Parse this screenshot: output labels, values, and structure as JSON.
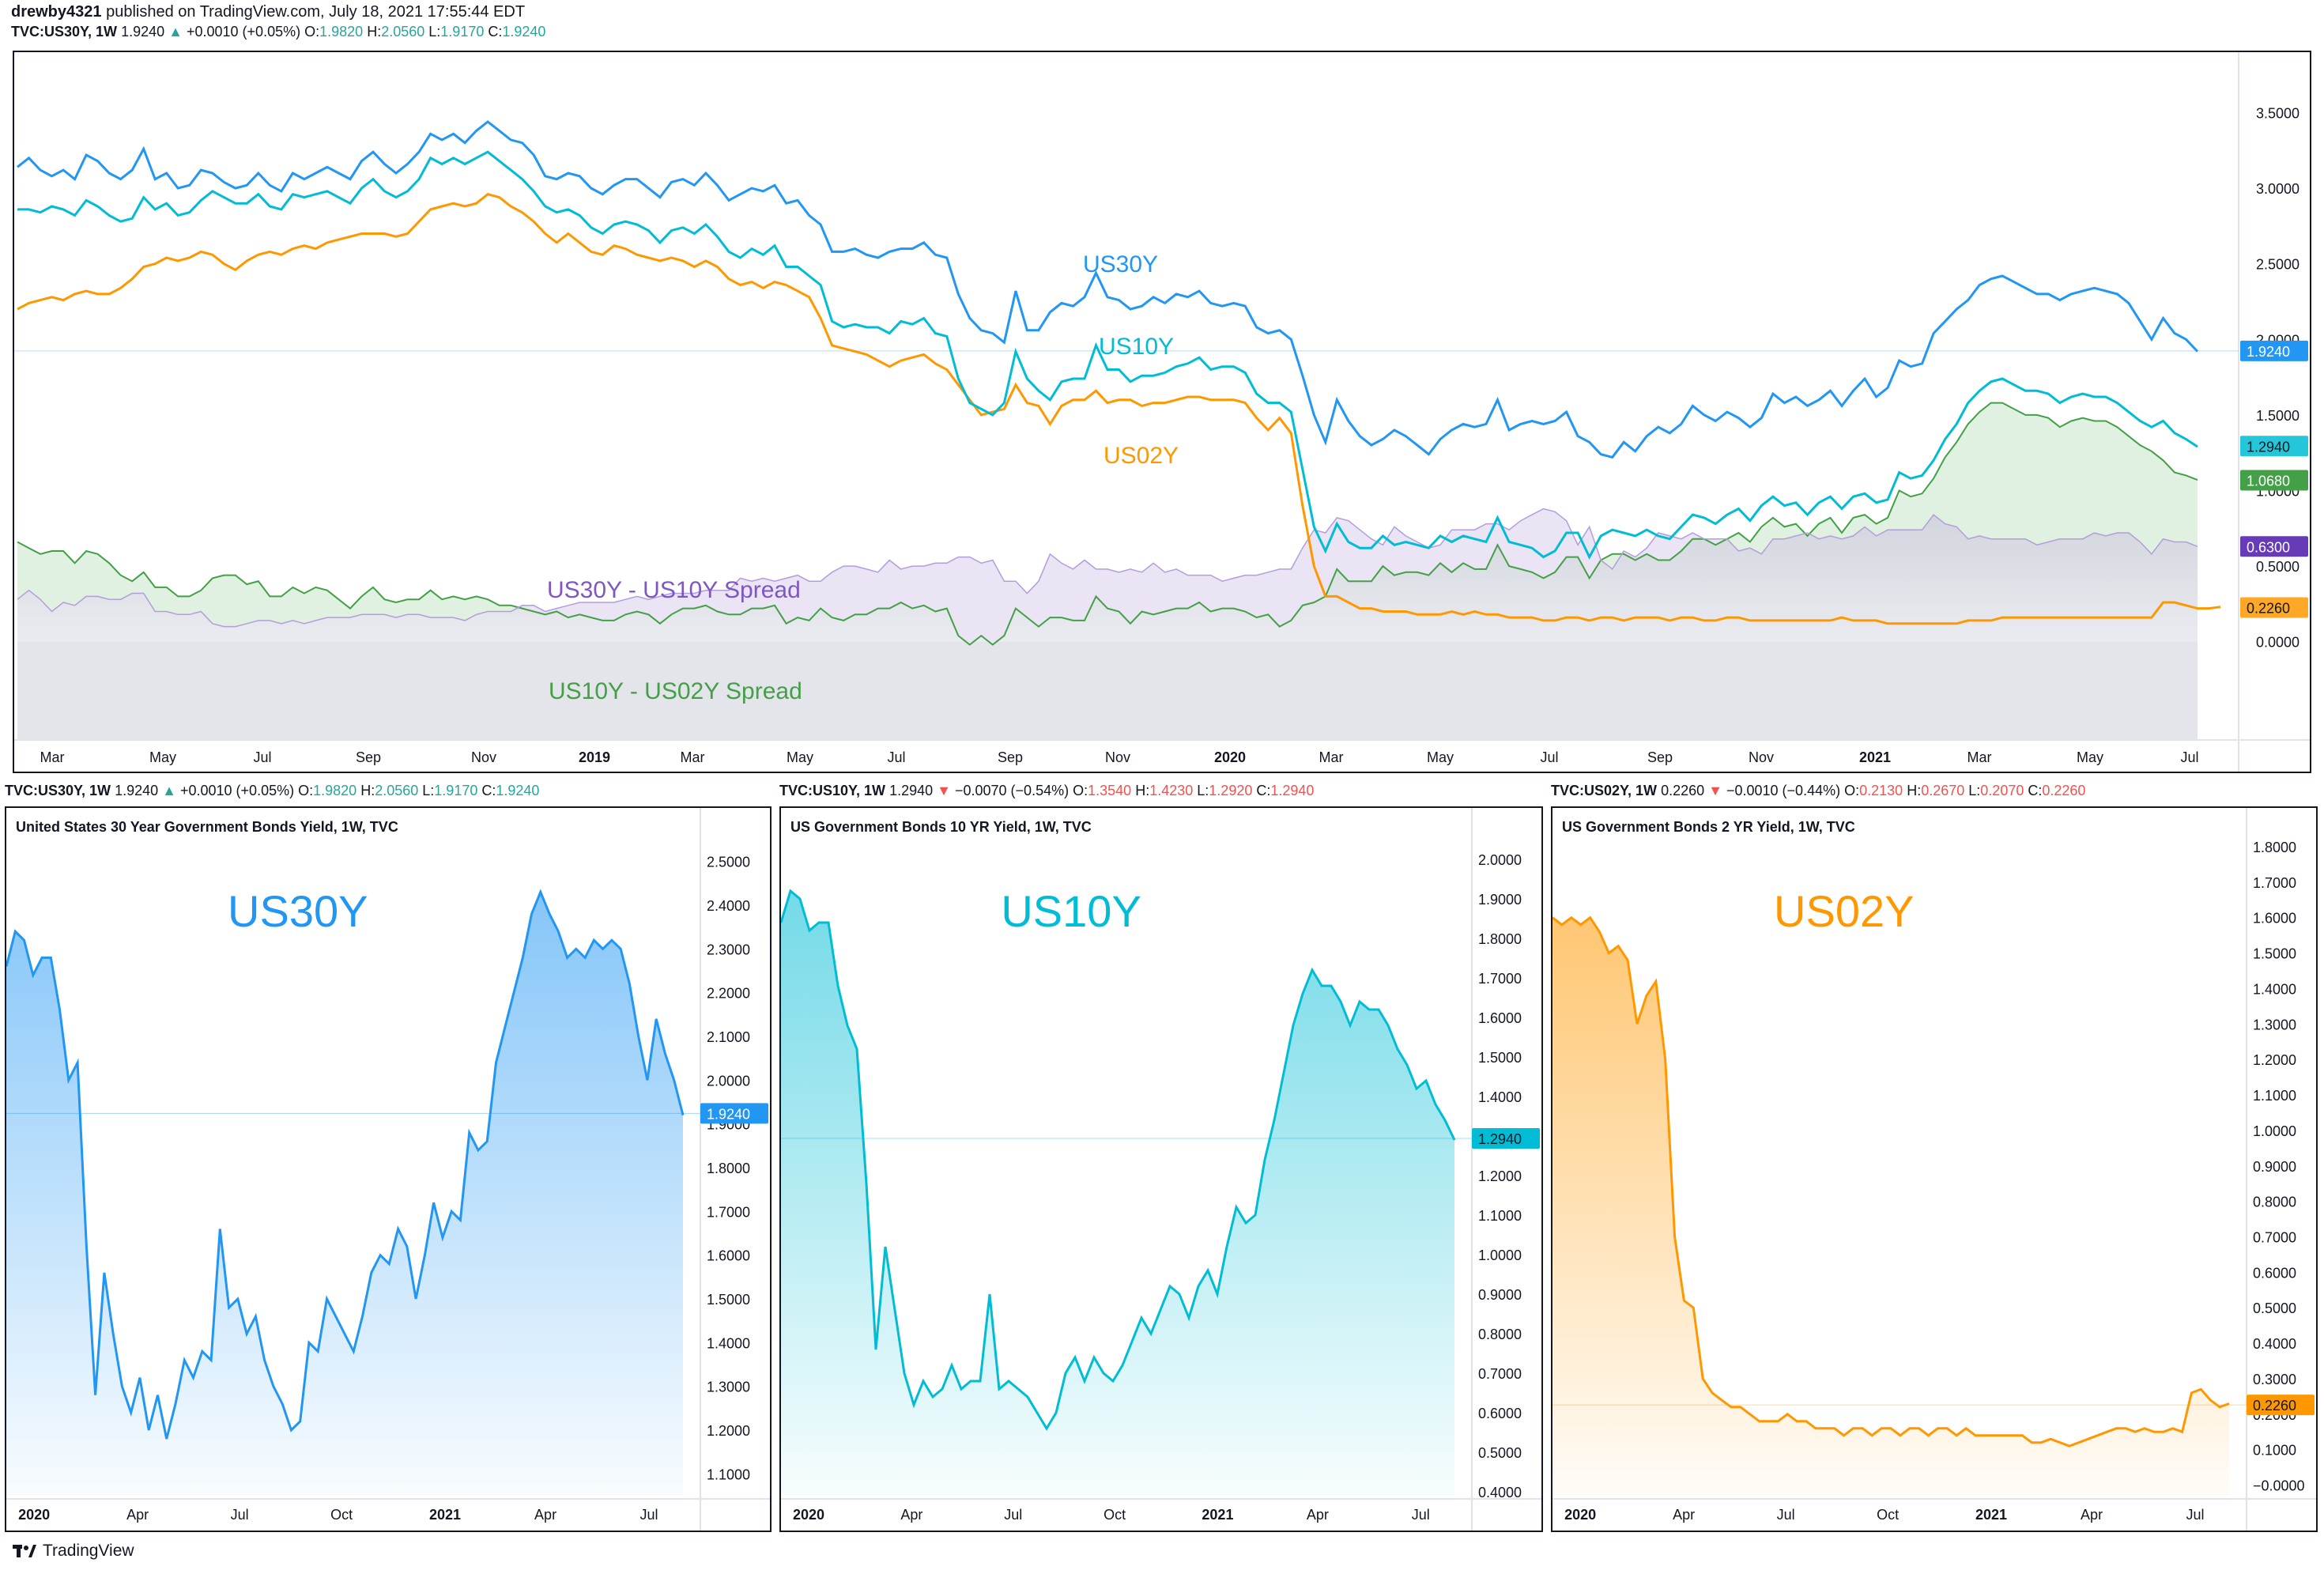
{
  "header": {
    "user": "drewby4321",
    "text": "published on TradingView.com, July 18, 2021 17:55:44 EDT"
  },
  "main_legend": {
    "symbol": "TVC:US30Y, 1W",
    "price": "1.9240",
    "arrow": "▲",
    "change": "+0.0010 (+0.05%)",
    "o_label": "O:",
    "o": "1.9820",
    "h_label": "H:",
    "h": "2.0560",
    "l_label": "L:",
    "l": "1.9170",
    "c_label": "C:",
    "c": "1.9240"
  },
  "panels": [
    {
      "legend": {
        "symbol": "TVC:US30Y, 1W",
        "price": "1.9240",
        "arrow": "▲",
        "change": "+0.0010 (+0.05%)",
        "dir": "up",
        "o": "1.9820",
        "h": "2.0560",
        "l": "1.9170",
        "c": "1.9240"
      },
      "title": "United States 30 Year Government Bonds Yield, 1W, TVC",
      "big_label": "US30Y"
    },
    {
      "legend": {
        "symbol": "TVC:US10Y, 1W",
        "price": "1.2940",
        "arrow": "▼",
        "change": "−0.0070 (−0.54%)",
        "dir": "dn",
        "o": "1.3540",
        "h": "1.4230",
        "l": "1.2920",
        "c": "1.2940"
      },
      "title": "US Government Bonds 10 YR Yield, 1W, TVC",
      "big_label": "US10Y"
    },
    {
      "legend": {
        "symbol": "TVC:US02Y, 1W",
        "price": "0.2260",
        "arrow": "▼",
        "change": "−0.0010 (−0.44%)",
        "dir": "dn",
        "o": "0.2130",
        "h": "0.2670",
        "l": "0.2070",
        "c": "0.2260"
      },
      "title": "US Government Bonds 2 YR Yield, 1W, TVC",
      "big_label": "US02Y"
    }
  ],
  "brand": {
    "name": "TradingView"
  },
  "colors": {
    "us30y": "#2196f3",
    "us10y": "#00bcd4",
    "us02y": "#ff9800",
    "spread30_10": "#7e57c2",
    "spread10_02": "#43a047"
  },
  "chart_data": [
    {
      "type": "line",
      "ylim": [
        -0.65,
        3.9
      ],
      "yticks": [
        "3.5000",
        "3.0000",
        "2.5000",
        "2.0000",
        "1.5000",
        "1.0000",
        "0.5000",
        "0.0000"
      ],
      "x_ticks": [
        "Mar",
        "May",
        "Jul",
        "Sep",
        "Nov",
        "2019",
        "Mar",
        "May",
        "Jul",
        "Sep",
        "Nov",
        "2020",
        "Mar",
        "May",
        "Jul",
        "Sep",
        "Nov",
        "2021",
        "Mar",
        "May",
        "Jul"
      ],
      "annotations": [
        "US30Y",
        "US10Y",
        "US02Y",
        "US30Y - US10Y Spread",
        "US10Y - US02Y Spread"
      ],
      "price_labels": [
        {
          "series": "US30Y",
          "value": "1.9240"
        },
        {
          "series": "US10Y",
          "value": "1.2940"
        },
        {
          "series": "US10Y - US02Y Spread",
          "value": "1.0680"
        },
        {
          "series": "US30Y - US10Y Spread",
          "value": "0.6300"
        },
        {
          "series": "US02Y",
          "value": "0.2260"
        }
      ],
      "series": [
        {
          "name": "US30Y",
          "values": [
            3.14,
            3.2,
            3.12,
            3.08,
            3.12,
            3.06,
            3.22,
            3.18,
            3.1,
            3.06,
            3.12,
            3.26,
            3.06,
            3.1,
            3.0,
            3.02,
            3.12,
            3.1,
            3.04,
            3.0,
            3.02,
            3.1,
            3.02,
            2.98,
            3.1,
            3.06,
            3.1,
            3.14,
            3.1,
            3.06,
            3.18,
            3.24,
            3.16,
            3.1,
            3.16,
            3.24,
            3.36,
            3.32,
            3.36,
            3.3,
            3.38,
            3.44,
            3.38,
            3.32,
            3.3,
            3.22,
            3.08,
            3.06,
            3.1,
            3.08,
            3.0,
            2.96,
            3.02,
            3.06,
            3.06,
            3.0,
            2.94,
            3.04,
            3.06,
            3.02,
            3.1,
            3.02,
            2.92,
            2.96,
            3.0,
            2.98,
            3.02,
            2.9,
            2.92,
            2.82,
            2.76,
            2.58,
            2.58,
            2.6,
            2.56,
            2.54,
            2.58,
            2.6,
            2.6,
            2.64,
            2.56,
            2.54,
            2.3,
            2.14,
            2.06,
            2.04,
            1.98,
            2.32,
            2.06,
            2.06,
            2.18,
            2.24,
            2.22,
            2.28,
            2.44,
            2.28,
            2.26,
            2.2,
            2.22,
            2.28,
            2.24,
            2.3,
            2.28,
            2.32,
            2.24,
            2.22,
            2.24,
            2.22,
            2.08,
            2.04,
            2.06,
            2.0,
            1.76,
            1.5,
            1.32,
            1.6,
            1.46,
            1.36,
            1.3,
            1.34,
            1.4,
            1.36,
            1.3,
            1.24,
            1.34,
            1.4,
            1.44,
            1.42,
            1.44,
            1.6,
            1.4,
            1.44,
            1.46,
            1.44,
            1.46,
            1.52,
            1.36,
            1.32,
            1.24,
            1.22,
            1.32,
            1.26,
            1.36,
            1.42,
            1.38,
            1.44,
            1.56,
            1.5,
            1.46,
            1.52,
            1.48,
            1.42,
            1.48,
            1.64,
            1.58,
            1.62,
            1.56,
            1.6,
            1.66,
            1.56,
            1.66,
            1.74,
            1.62,
            1.68,
            1.86,
            1.82,
            1.84,
            2.04,
            2.12,
            2.2,
            2.26,
            2.36,
            2.4,
            2.42,
            2.38,
            2.34,
            2.3,
            2.3,
            2.26,
            2.3,
            2.32,
            2.34,
            2.32,
            2.3,
            2.24,
            2.12,
            2.0,
            2.14,
            2.04,
            2.0,
            1.92
          ]
        },
        {
          "name": "US10Y",
          "values": [
            2.86,
            2.86,
            2.84,
            2.88,
            2.86,
            2.82,
            2.92,
            2.88,
            2.82,
            2.78,
            2.8,
            2.94,
            2.86,
            2.9,
            2.82,
            2.84,
            2.92,
            2.98,
            2.94,
            2.9,
            2.9,
            2.96,
            2.88,
            2.86,
            2.96,
            2.94,
            2.96,
            2.98,
            2.94,
            2.9,
            3.0,
            3.06,
            2.98,
            2.94,
            2.98,
            3.06,
            3.2,
            3.16,
            3.2,
            3.16,
            3.2,
            3.24,
            3.18,
            3.12,
            3.06,
            2.98,
            2.88,
            2.84,
            2.86,
            2.82,
            2.74,
            2.7,
            2.76,
            2.78,
            2.76,
            2.72,
            2.64,
            2.72,
            2.74,
            2.7,
            2.76,
            2.68,
            2.58,
            2.54,
            2.6,
            2.56,
            2.62,
            2.48,
            2.48,
            2.42,
            2.36,
            2.12,
            2.08,
            2.1,
            2.08,
            2.08,
            2.04,
            2.12,
            2.1,
            2.14,
            2.04,
            2.02,
            1.74,
            1.58,
            1.54,
            1.5,
            1.58,
            1.92,
            1.74,
            1.66,
            1.6,
            1.72,
            1.74,
            1.74,
            1.96,
            1.8,
            1.8,
            1.72,
            1.76,
            1.76,
            1.78,
            1.82,
            1.84,
            1.88,
            1.8,
            1.82,
            1.82,
            1.78,
            1.64,
            1.58,
            1.58,
            1.52,
            1.14,
            0.76,
            0.6,
            0.78,
            0.66,
            0.62,
            0.62,
            0.7,
            0.64,
            0.66,
            0.64,
            0.62,
            0.7,
            0.66,
            0.7,
            0.68,
            0.66,
            0.82,
            0.66,
            0.64,
            0.62,
            0.56,
            0.6,
            0.72,
            0.72,
            0.56,
            0.7,
            0.74,
            0.72,
            0.7,
            0.74,
            0.7,
            0.68,
            0.76,
            0.84,
            0.82,
            0.78,
            0.84,
            0.88,
            0.8,
            0.9,
            0.96,
            0.9,
            0.92,
            0.84,
            0.92,
            0.96,
            0.88,
            0.96,
            0.98,
            0.92,
            0.94,
            1.12,
            1.08,
            1.1,
            1.2,
            1.34,
            1.44,
            1.58,
            1.66,
            1.72,
            1.74,
            1.7,
            1.66,
            1.66,
            1.64,
            1.58,
            1.62,
            1.64,
            1.62,
            1.62,
            1.58,
            1.52,
            1.46,
            1.42,
            1.46,
            1.38,
            1.34,
            1.29
          ]
        },
        {
          "name": "US02Y",
          "values": [
            2.2,
            2.24,
            2.26,
            2.28,
            2.26,
            2.3,
            2.32,
            2.3,
            2.3,
            2.34,
            2.4,
            2.48,
            2.5,
            2.54,
            2.52,
            2.54,
            2.58,
            2.56,
            2.5,
            2.46,
            2.52,
            2.56,
            2.58,
            2.56,
            2.6,
            2.62,
            2.6,
            2.64,
            2.66,
            2.68,
            2.7,
            2.7,
            2.7,
            2.68,
            2.7,
            2.78,
            2.86,
            2.88,
            2.9,
            2.88,
            2.9,
            2.96,
            2.94,
            2.88,
            2.84,
            2.78,
            2.7,
            2.64,
            2.7,
            2.64,
            2.58,
            2.56,
            2.62,
            2.6,
            2.56,
            2.54,
            2.52,
            2.54,
            2.52,
            2.48,
            2.52,
            2.48,
            2.4,
            2.36,
            2.38,
            2.34,
            2.38,
            2.36,
            2.32,
            2.28,
            2.14,
            1.96,
            1.94,
            1.92,
            1.9,
            1.86,
            1.82,
            1.86,
            1.88,
            1.9,
            1.84,
            1.8,
            1.7,
            1.6,
            1.5,
            1.52,
            1.54,
            1.7,
            1.58,
            1.56,
            1.44,
            1.56,
            1.6,
            1.6,
            1.66,
            1.58,
            1.6,
            1.6,
            1.56,
            1.58,
            1.58,
            1.6,
            1.62,
            1.62,
            1.6,
            1.6,
            1.6,
            1.58,
            1.48,
            1.4,
            1.48,
            1.38,
            0.9,
            0.5,
            0.3,
            0.3,
            0.26,
            0.22,
            0.22,
            0.2,
            0.2,
            0.2,
            0.18,
            0.18,
            0.18,
            0.2,
            0.18,
            0.2,
            0.18,
            0.18,
            0.16,
            0.16,
            0.16,
            0.14,
            0.14,
            0.16,
            0.16,
            0.14,
            0.16,
            0.16,
            0.14,
            0.16,
            0.16,
            0.16,
            0.14,
            0.16,
            0.16,
            0.14,
            0.14,
            0.16,
            0.16,
            0.14,
            0.14,
            0.14,
            0.14,
            0.14,
            0.14,
            0.14,
            0.14,
            0.16,
            0.14,
            0.14,
            0.14,
            0.12,
            0.12,
            0.12,
            0.12,
            0.12,
            0.12,
            0.12,
            0.14,
            0.14,
            0.14,
            0.16,
            0.16,
            0.16,
            0.16,
            0.16,
            0.16,
            0.16,
            0.16,
            0.16,
            0.16,
            0.16,
            0.16,
            0.16,
            0.16,
            0.26,
            0.26,
            0.24,
            0.22,
            0.22,
            0.23
          ]
        }
      ]
    },
    {
      "type": "area",
      "series_name": "US30Y",
      "ylim": [
        1.05,
        2.55
      ],
      "yticks": [
        "2.5000",
        "2.4000",
        "2.3000",
        "2.2000",
        "2.1000",
        "2.0000",
        "1.9000",
        "1.8000",
        "1.7000",
        "1.6000",
        "1.5000",
        "1.4000",
        "1.3000",
        "1.2000",
        "1.1000"
      ],
      "x_ticks": [
        "2020",
        "Apr",
        "Jul",
        "Oct",
        "2021",
        "Apr",
        "Jul"
      ],
      "last_value": "1.9240",
      "values": [
        2.26,
        2.34,
        2.32,
        2.24,
        2.28,
        2.28,
        2.16,
        2.0,
        2.04,
        1.62,
        1.28,
        1.56,
        1.42,
        1.3,
        1.24,
        1.32,
        1.2,
        1.28,
        1.18,
        1.26,
        1.36,
        1.32,
        1.38,
        1.36,
        1.66,
        1.48,
        1.5,
        1.42,
        1.46,
        1.36,
        1.3,
        1.26,
        1.2,
        1.22,
        1.4,
        1.38,
        1.5,
        1.46,
        1.42,
        1.38,
        1.46,
        1.56,
        1.6,
        1.58,
        1.66,
        1.62,
        1.5,
        1.6,
        1.72,
        1.64,
        1.7,
        1.68,
        1.88,
        1.84,
        1.86,
        2.04,
        2.12,
        2.2,
        2.28,
        2.38,
        2.43,
        2.38,
        2.34,
        2.28,
        2.3,
        2.28,
        2.32,
        2.3,
        2.32,
        2.3,
        2.22,
        2.1,
        2.0,
        2.14,
        2.06,
        2.0,
        1.92
      ]
    },
    {
      "type": "area",
      "series_name": "US10Y",
      "ylim": [
        0.39,
        2.05
      ],
      "yticks": [
        "2.0000",
        "1.9000",
        "1.8000",
        "1.7000",
        "1.6000",
        "1.5000",
        "1.4000",
        "1.3000",
        "1.2000",
        "1.1000",
        "1.0000",
        "0.9000",
        "0.8000",
        "0.7000",
        "0.6000",
        "0.5000",
        "0.4000"
      ],
      "x_ticks": [
        "2020",
        "Apr",
        "Jul",
        "Oct",
        "2021",
        "Apr",
        "Jul"
      ],
      "last_value": "1.2940",
      "values": [
        1.84,
        1.92,
        1.9,
        1.82,
        1.84,
        1.84,
        1.68,
        1.58,
        1.52,
        1.18,
        0.76,
        1.02,
        0.86,
        0.7,
        0.62,
        0.68,
        0.64,
        0.66,
        0.72,
        0.66,
        0.68,
        0.68,
        0.9,
        0.66,
        0.68,
        0.66,
        0.64,
        0.6,
        0.56,
        0.6,
        0.7,
        0.74,
        0.68,
        0.74,
        0.7,
        0.68,
        0.72,
        0.78,
        0.84,
        0.8,
        0.86,
        0.92,
        0.9,
        0.84,
        0.92,
        0.96,
        0.9,
        1.02,
        1.12,
        1.08,
        1.1,
        1.24,
        1.34,
        1.46,
        1.58,
        1.66,
        1.72,
        1.68,
        1.68,
        1.64,
        1.58,
        1.64,
        1.62,
        1.62,
        1.58,
        1.52,
        1.48,
        1.42,
        1.44,
        1.38,
        1.34,
        1.29
      ]
    },
    {
      "type": "area",
      "series_name": "US02Y",
      "ylim": [
        -0.03,
        1.82
      ],
      "yticks": [
        "1.8000",
        "1.7000",
        "1.6000",
        "1.5000",
        "1.4000",
        "1.3000",
        "1.2000",
        "1.1000",
        "1.0000",
        "0.9000",
        "0.8000",
        "0.7000",
        "0.6000",
        "0.5000",
        "0.4000",
        "0.3000",
        "0.2000",
        "0.1000",
        "−0.0000"
      ],
      "x_ticks": [
        "2020",
        "Apr",
        "Jul",
        "Oct",
        "2021",
        "Apr",
        "Jul"
      ],
      "last_value": "0.2260",
      "values": [
        1.6,
        1.58,
        1.6,
        1.58,
        1.6,
        1.56,
        1.5,
        1.52,
        1.48,
        1.3,
        1.38,
        1.42,
        1.2,
        0.7,
        0.52,
        0.5,
        0.3,
        0.26,
        0.24,
        0.22,
        0.22,
        0.2,
        0.18,
        0.18,
        0.18,
        0.2,
        0.18,
        0.18,
        0.16,
        0.16,
        0.16,
        0.14,
        0.16,
        0.16,
        0.14,
        0.16,
        0.16,
        0.14,
        0.16,
        0.16,
        0.14,
        0.16,
        0.16,
        0.14,
        0.16,
        0.14,
        0.14,
        0.14,
        0.14,
        0.14,
        0.14,
        0.12,
        0.12,
        0.13,
        0.12,
        0.11,
        0.12,
        0.13,
        0.14,
        0.15,
        0.16,
        0.16,
        0.15,
        0.16,
        0.15,
        0.15,
        0.16,
        0.15,
        0.26,
        0.27,
        0.24,
        0.22,
        0.23
      ]
    }
  ]
}
